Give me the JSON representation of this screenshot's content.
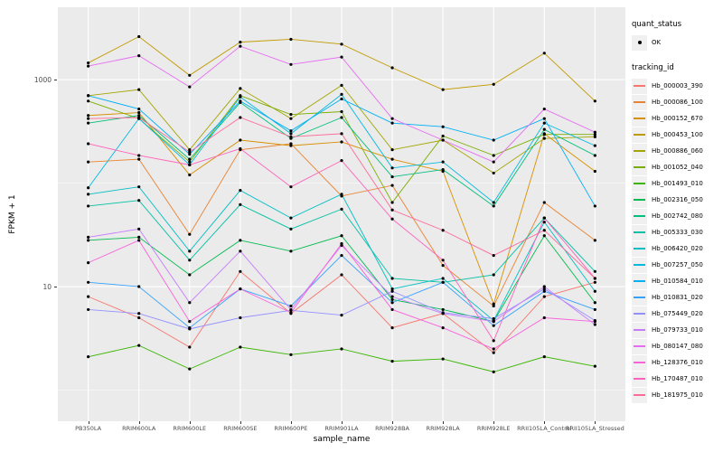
{
  "figure": {
    "background": "#FFFFFF"
  },
  "chart_data": {
    "type": "line",
    "title": "",
    "xlabel": "sample_name",
    "ylabel": "FPKM + 1",
    "y_scale": "log10",
    "y_axis_ticks": [
      10,
      1000
    ],
    "y_minor_gridlines": [
      1,
      100
    ],
    "ylim": [
      0.5,
      5000
    ],
    "grid": true,
    "legend_position": "right",
    "panel_background": "#EBEBEB",
    "gridline_color": "#FFFFFF",
    "point_color": "#000000",
    "categories": [
      "PB350LA",
      "RRIM600LA",
      "RRIM600LE",
      "RRIM600SE",
      "RRIM600PE",
      "RRIM901LA",
      "RRIM928BA",
      "RRIM928LA",
      "RRIM928LE",
      "RRII105LA_Control",
      "RRII105LA_Stressed"
    ],
    "legend": {
      "quant_status_title": "quant_status",
      "ok_label": "OK",
      "ok_shape": "point",
      "tracking_title": "tracking_id"
    },
    "series": [
      {
        "name": "Hb_000003_390",
        "color": "#F8766D",
        "values": [
          8,
          5,
          2.6,
          14,
          5.5,
          13,
          4,
          5.5,
          2.3,
          8,
          11
        ]
      },
      {
        "name": "Hb_000086_100",
        "color": "#EA8331",
        "values": [
          160,
          170,
          32,
          210,
          240,
          75,
          95,
          16,
          6.5,
          65,
          28
        ]
      },
      {
        "name": "Hb_000152_670",
        "color": "#D89000",
        "values": [
          450,
          480,
          120,
          260,
          230,
          250,
          170,
          130,
          6.8,
          300,
          130
        ]
      },
      {
        "name": "Hb_000453_100",
        "color": "#C09B00",
        "values": [
          1450,
          2600,
          1100,
          2300,
          2450,
          2200,
          1300,
          800,
          900,
          1800,
          620
        ]
      },
      {
        "name": "Hb_000886_060",
        "color": "#A3A500",
        "values": [
          700,
          800,
          210,
          820,
          420,
          880,
          210,
          260,
          125,
          270,
          280
        ]
      },
      {
        "name": "Hb_001052_040",
        "color": "#7CAE00",
        "values": [
          620,
          420,
          160,
          700,
          460,
          490,
          65,
          285,
          185,
          295,
          295
        ]
      },
      {
        "name": "Hb_001493_010",
        "color": "#39B600",
        "values": [
          2.1,
          2.7,
          1.6,
          2.6,
          2.2,
          2.5,
          1.9,
          2,
          1.5,
          2.1,
          1.7
        ]
      },
      {
        "name": "Hb_002316_050",
        "color": "#00BB4E",
        "values": [
          28,
          30,
          13,
          28,
          22,
          31,
          7.5,
          6,
          4.6,
          31,
          7
        ]
      },
      {
        "name": "Hb_002742_080",
        "color": "#00BF7D",
        "values": [
          380,
          450,
          170,
          600,
          270,
          430,
          115,
          135,
          60,
          330,
          185
        ]
      },
      {
        "name": "Hb_005333_030",
        "color": "#00C1A3",
        "values": [
          60,
          68,
          18,
          62,
          36,
          56,
          12,
          11,
          13,
          46,
          14
        ]
      },
      {
        "name": "Hb_006420_020",
        "color": "#00BFC4",
        "values": [
          78,
          92,
          22,
          85,
          46,
          78,
          9.5,
          12,
          4.7,
          42,
          9
        ]
      },
      {
        "name": "Hb_007257_050",
        "color": "#00BAE0",
        "values": [
          90,
          420,
          150,
          680,
          300,
          720,
          140,
          160,
          65,
          380,
          230
        ]
      },
      {
        "name": "Hb_010584_010",
        "color": "#00B0F6",
        "values": [
          700,
          520,
          190,
          620,
          320,
          650,
          380,
          350,
          260,
          420,
          60
        ]
      },
      {
        "name": "Hb_010831_020",
        "color": "#35A2FF",
        "values": [
          11,
          10,
          4,
          9.5,
          6.5,
          20,
          7,
          11,
          4.2,
          9,
          6
        ]
      },
      {
        "name": "Hb_075449_020",
        "color": "#9590FF",
        "values": [
          6,
          5.5,
          3.9,
          5,
          5.9,
          5.3,
          9,
          5.6,
          4.9,
          9.5,
          4.7
        ]
      },
      {
        "name": "Hb_079733_010",
        "color": "#C77CFF",
        "values": [
          30,
          36,
          7,
          22,
          6,
          25,
          8,
          5.5,
          4.6,
          10,
          4.3
        ]
      },
      {
        "name": "Hb_080147_080",
        "color": "#E76BF3",
        "values": [
          1350,
          1700,
          850,
          2100,
          1400,
          1650,
          420,
          260,
          160,
          520,
          310
        ]
      },
      {
        "name": "Hb_128376_010",
        "color": "#FA62DB",
        "values": [
          17,
          28,
          4.6,
          9.5,
          5.6,
          26,
          6,
          4,
          2.5,
          5,
          4.6
        ]
      },
      {
        "name": "Hb_170487_010",
        "color": "#FF62BC",
        "values": [
          240,
          185,
          150,
          215,
          92,
          165,
          45,
          18,
          3,
          46,
          12
        ]
      },
      {
        "name": "Hb_181975_010",
        "color": "#FF6A98",
        "values": [
          420,
          430,
          200,
          430,
          280,
          300,
          55,
          35,
          20,
          35,
          12
        ]
      }
    ]
  }
}
